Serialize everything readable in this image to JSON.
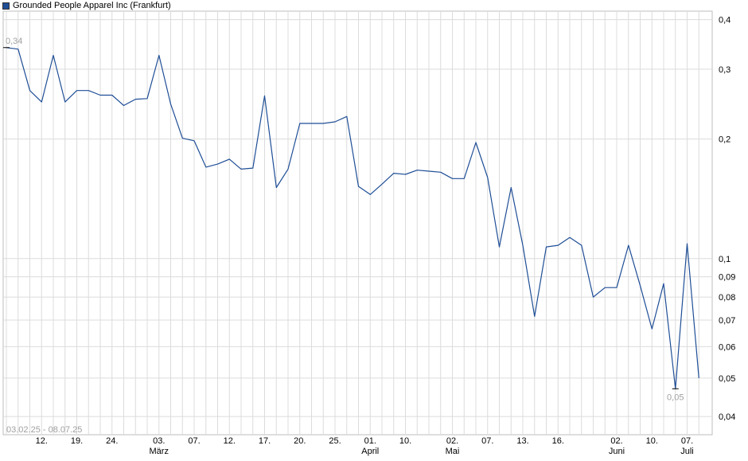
{
  "chart_data": {
    "type": "line",
    "title": "Grounded People Apparel Inc (Frankfurt)",
    "series": [
      {
        "name": "Grounded People Apparel Inc (Frankfurt)",
        "color": "#1f4e96",
        "values": [
          0.34,
          0.337,
          0.265,
          0.248,
          0.325,
          0.248,
          0.265,
          0.265,
          0.258,
          0.258,
          0.243,
          0.252,
          0.253,
          0.325,
          0.245,
          0.201,
          0.198,
          0.17,
          0.173,
          0.178,
          0.168,
          0.169,
          0.257,
          0.151,
          0.168,
          0.219,
          0.219,
          0.219,
          0.221,
          0.228,
          0.152,
          0.145,
          0.154,
          0.164,
          0.163,
          0.167,
          0.166,
          0.165,
          0.159,
          0.159,
          0.196,
          0.16,
          0.107,
          0.151,
          0.108,
          0.0715,
          0.107,
          0.108,
          0.113,
          0.108,
          0.08,
          0.0845,
          0.0845,
          0.108,
          0.0855,
          0.0665,
          0.0865,
          0.047,
          0.109,
          0.05
        ]
      }
    ],
    "y_scale": "log",
    "ylim": [
      0.036,
      0.42
    ],
    "y_ticks": [
      {
        "value": 0.4,
        "label": "0,4"
      },
      {
        "value": 0.3,
        "label": "0,3"
      },
      {
        "value": 0.2,
        "label": "0,2"
      },
      {
        "value": 0.1,
        "label": "0,1"
      },
      {
        "value": 0.09,
        "label": "0,09"
      },
      {
        "value": 0.08,
        "label": "0,08"
      },
      {
        "value": 0.07,
        "label": "0,07"
      },
      {
        "value": 0.06,
        "label": "0,06"
      },
      {
        "value": 0.05,
        "label": "0,05"
      },
      {
        "value": 0.04,
        "label": "0,04"
      }
    ],
    "x_ticks": [
      {
        "index": 3,
        "label": "12.",
        "month": ""
      },
      {
        "index": 6,
        "label": "19.",
        "month": ""
      },
      {
        "index": 9,
        "label": "24.",
        "month": ""
      },
      {
        "index": 13,
        "label": "03.",
        "month": "März"
      },
      {
        "index": 16,
        "label": "07.",
        "month": ""
      },
      {
        "index": 19,
        "label": "12.",
        "month": ""
      },
      {
        "index": 22,
        "label": "17.",
        "month": ""
      },
      {
        "index": 25,
        "label": "20.",
        "month": ""
      },
      {
        "index": 28,
        "label": "25.",
        "month": ""
      },
      {
        "index": 31,
        "label": "01.",
        "month": "April"
      },
      {
        "index": 34,
        "label": "10.",
        "month": ""
      },
      {
        "index": 38,
        "label": "02.",
        "month": "Mai"
      },
      {
        "index": 41,
        "label": "07.",
        "month": ""
      },
      {
        "index": 44,
        "label": "13.",
        "month": ""
      },
      {
        "index": 47,
        "label": "16.",
        "month": ""
      },
      {
        "index": 52,
        "label": "02.",
        "month": "Juni"
      },
      {
        "index": 55,
        "label": "10.",
        "month": ""
      },
      {
        "index": 58,
        "label": "07.",
        "month": "Juli"
      }
    ],
    "annotations": [
      {
        "index": 0,
        "value": 0.34,
        "label": "0,34",
        "position": "above"
      },
      {
        "index": 57,
        "value": 0.047,
        "label": "0,05",
        "position": "below"
      }
    ],
    "date_range": "03.02.25 - 08.07.25",
    "grid": true,
    "legend_position": "top-left"
  }
}
